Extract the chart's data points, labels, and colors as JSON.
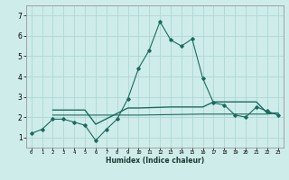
{
  "xlabel": "Humidex (Indice chaleur)",
  "background_color": "#ceecea",
  "grid_color": "#add8d4",
  "line_color": "#1a6b5e",
  "xlim": [
    -0.5,
    23.5
  ],
  "ylim": [
    0.5,
    7.5
  ],
  "xticks": [
    0,
    1,
    2,
    3,
    4,
    5,
    6,
    7,
    8,
    9,
    10,
    11,
    12,
    13,
    14,
    15,
    16,
    17,
    18,
    19,
    20,
    21,
    22,
    23
  ],
  "yticks": [
    1,
    2,
    3,
    4,
    5,
    6,
    7
  ],
  "line1_x": [
    0,
    1,
    2,
    3,
    4,
    5,
    6,
    7,
    8,
    9,
    10,
    11,
    12,
    13,
    14,
    15,
    16,
    17,
    18,
    19,
    20,
    21,
    22,
    23
  ],
  "line1_y": [
    1.2,
    1.4,
    1.9,
    1.9,
    1.75,
    1.6,
    0.85,
    1.4,
    1.9,
    2.9,
    4.4,
    5.3,
    6.7,
    5.8,
    5.5,
    5.85,
    3.9,
    2.7,
    2.6,
    2.1,
    2.0,
    2.5,
    2.3,
    2.1
  ],
  "line2_x": [
    2,
    5,
    6,
    9,
    10,
    13,
    14,
    16,
    17,
    21,
    22,
    23
  ],
  "line2_y": [
    2.35,
    2.35,
    1.65,
    2.45,
    2.45,
    2.5,
    2.5,
    2.5,
    2.75,
    2.75,
    2.2,
    2.2
  ],
  "line3_x": [
    2,
    10,
    16,
    22,
    23
  ],
  "line3_y": [
    2.1,
    2.1,
    2.15,
    2.15,
    2.2
  ]
}
